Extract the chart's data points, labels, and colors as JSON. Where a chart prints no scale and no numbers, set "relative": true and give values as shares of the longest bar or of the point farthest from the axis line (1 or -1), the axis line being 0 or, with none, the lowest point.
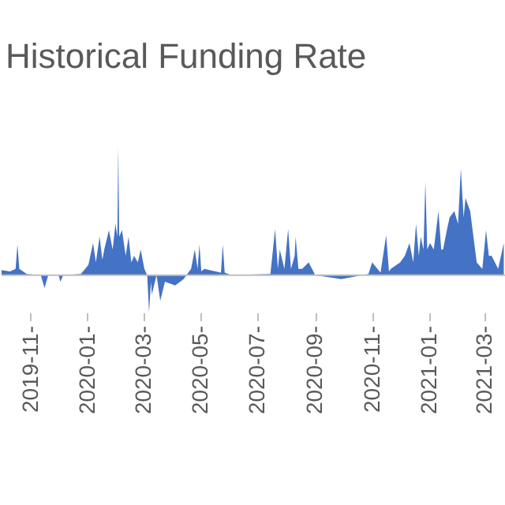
{
  "chart_data": {
    "type": "area",
    "title": "Historical Funding Rate",
    "relative": true,
    "xlim": [
      "2019-10-01",
      "2021-03-25"
    ],
    "xticks": [
      {
        "value": "2019-11-01",
        "label": "2019-11-"
      },
      {
        "value": "2020-01-01",
        "label": "2020-01-"
      },
      {
        "value": "2020-03-01",
        "label": "2020-03-"
      },
      {
        "value": "2020-05-01",
        "label": "2020-05-"
      },
      {
        "value": "2020-07-01",
        "label": "2020-07-"
      },
      {
        "value": "2020-09-01",
        "label": "2020-09-"
      },
      {
        "value": "2020-11-01",
        "label": "2020-11-"
      },
      {
        "value": "2021-01-01",
        "label": "2021-01-"
      },
      {
        "value": "2021-03-01",
        "label": "2021-03-"
      }
    ],
    "x": [
      "2019-10-01",
      "2019-10-10",
      "2019-10-16",
      "2019-10-18",
      "2019-10-20",
      "2019-10-24",
      "2019-10-28",
      "2019-11-12",
      "2019-11-16",
      "2019-11-20",
      "2019-12-01",
      "2019-12-03",
      "2019-12-06",
      "2019-12-25",
      "2020-01-02",
      "2020-01-07",
      "2020-01-10",
      "2020-01-14",
      "2020-01-17",
      "2020-01-19",
      "2020-01-24",
      "2020-01-28",
      "2020-01-31",
      "2020-02-02",
      "2020-02-03",
      "2020-02-04",
      "2020-02-07",
      "2020-02-11",
      "2020-02-14",
      "2020-02-17",
      "2020-02-20",
      "2020-02-24",
      "2020-02-27",
      "2020-03-02",
      "2020-03-05",
      "2020-03-07",
      "2020-03-09",
      "2020-03-10",
      "2020-03-15",
      "2020-03-19",
      "2020-03-24",
      "2020-04-04",
      "2020-04-13",
      "2020-04-21",
      "2020-04-25",
      "2020-04-28",
      "2020-04-30",
      "2020-05-02",
      "2020-05-05",
      "2020-05-23",
      "2020-05-25",
      "2020-05-27",
      "2020-06-03",
      "2020-07-15",
      "2020-07-20",
      "2020-07-23",
      "2020-07-25",
      "2020-07-30",
      "2020-08-03",
      "2020-08-06",
      "2020-08-10",
      "2020-08-11",
      "2020-08-14",
      "2020-08-18",
      "2020-08-25",
      "2020-09-01",
      "2020-09-29",
      "2020-10-28",
      "2020-11-01",
      "2020-11-10",
      "2020-11-16",
      "2020-11-19",
      "2020-11-21",
      "2020-12-01",
      "2020-12-06",
      "2020-12-11",
      "2020-12-15",
      "2020-12-18",
      "2020-12-21",
      "2020-12-23",
      "2020-12-26",
      "2020-12-28",
      "2020-12-30",
      "2021-01-02",
      "2021-01-06",
      "2021-01-11",
      "2021-01-14",
      "2021-01-16",
      "2021-01-20",
      "2021-01-23",
      "2021-01-28",
      "2021-02-01",
      "2021-02-04",
      "2021-02-07",
      "2021-02-09",
      "2021-02-14",
      "2021-02-21",
      "2021-02-27",
      "2021-03-03",
      "2021-03-06",
      "2021-03-09",
      "2021-03-16",
      "2021-03-22"
    ],
    "values": [
      0.04,
      0.03,
      0.05,
      0.24,
      0.05,
      0.03,
      0.01,
      0.0,
      -0.1,
      0.0,
      0.0,
      -0.05,
      0.0,
      0.01,
      0.08,
      0.25,
      0.1,
      0.3,
      0.12,
      0.2,
      0.35,
      0.2,
      0.4,
      0.3,
      1.0,
      0.3,
      0.35,
      0.15,
      0.3,
      0.1,
      0.15,
      0.1,
      0.2,
      0.05,
      0.0,
      -0.29,
      -0.05,
      -0.15,
      0.0,
      -0.2,
      -0.05,
      -0.08,
      -0.03,
      0.05,
      0.2,
      0.05,
      0.24,
      0.03,
      0.05,
      0.02,
      0.24,
      0.02,
      0.0,
      0.01,
      0.36,
      0.05,
      0.2,
      0.05,
      0.36,
      0.05,
      0.15,
      0.3,
      0.05,
      0.05,
      0.1,
      0.0,
      -0.03,
      0.01,
      0.1,
      0.02,
      0.31,
      0.03,
      0.05,
      0.1,
      0.15,
      0.25,
      0.1,
      0.4,
      0.15,
      0.3,
      0.2,
      0.73,
      0.2,
      0.25,
      0.2,
      0.5,
      0.2,
      0.2,
      0.35,
      0.45,
      0.5,
      0.4,
      0.83,
      0.45,
      0.6,
      0.5,
      0.1,
      0.05,
      0.35,
      0.15,
      0.15,
      0.05,
      0.25
    ],
    "color": "#4472c4"
  }
}
